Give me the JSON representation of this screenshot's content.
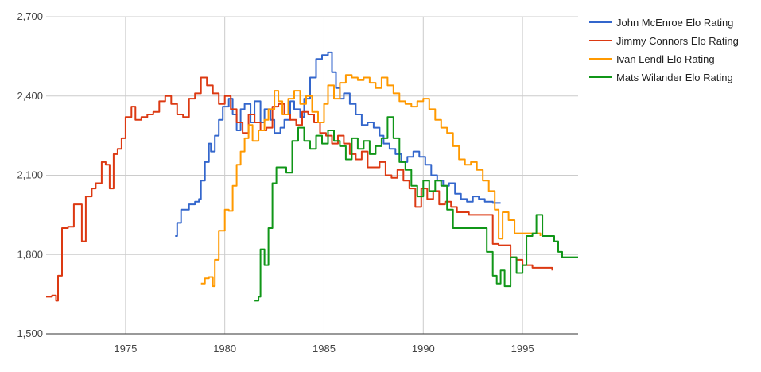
{
  "chart_data": {
    "type": "line",
    "title": "",
    "xlabel": "",
    "ylabel": "",
    "xlim": [
      1971.0,
      1997.8
    ],
    "ylim": [
      1500,
      2700
    ],
    "grid": true,
    "legend_position": "right",
    "x_ticks": [
      1975,
      1980,
      1985,
      1990,
      1995
    ],
    "x_tick_labels": [
      "1975",
      "1980",
      "1985",
      "1990",
      "1995"
    ],
    "y_ticks": [
      1500,
      1800,
      2100,
      2400,
      2700
    ],
    "y_tick_labels": [
      "1,500",
      "1,800",
      "2,100",
      "2,400",
      "2,700"
    ],
    "series": [
      {
        "name": "John McEnroe Elo Rating",
        "color": "#3366cc",
        "points": [
          [
            1977.5,
            1870
          ],
          [
            1977.6,
            1920
          ],
          [
            1977.8,
            1970
          ],
          [
            1978.2,
            1990
          ],
          [
            1978.5,
            2000
          ],
          [
            1978.7,
            2010
          ],
          [
            1978.8,
            2080
          ],
          [
            1979.0,
            2150
          ],
          [
            1979.2,
            2220
          ],
          [
            1979.3,
            2190
          ],
          [
            1979.5,
            2250
          ],
          [
            1979.7,
            2310
          ],
          [
            1979.9,
            2360
          ],
          [
            1980.2,
            2390
          ],
          [
            1980.4,
            2330
          ],
          [
            1980.6,
            2270
          ],
          [
            1980.8,
            2350
          ],
          [
            1981.0,
            2370
          ],
          [
            1981.3,
            2300
          ],
          [
            1981.5,
            2380
          ],
          [
            1981.8,
            2300
          ],
          [
            1982.0,
            2350
          ],
          [
            1982.3,
            2310
          ],
          [
            1982.5,
            2260
          ],
          [
            1982.8,
            2280
          ],
          [
            1983.0,
            2310
          ],
          [
            1983.3,
            2380
          ],
          [
            1983.5,
            2350
          ],
          [
            1983.8,
            2320
          ],
          [
            1984.0,
            2390
          ],
          [
            1984.3,
            2470
          ],
          [
            1984.6,
            2540
          ],
          [
            1984.9,
            2555
          ],
          [
            1985.2,
            2565
          ],
          [
            1985.4,
            2490
          ],
          [
            1985.6,
            2430
          ],
          [
            1985.8,
            2390
          ],
          [
            1986.0,
            2410
          ],
          [
            1986.3,
            2370
          ],
          [
            1986.6,
            2330
          ],
          [
            1986.9,
            2290
          ],
          [
            1987.2,
            2300
          ],
          [
            1987.5,
            2280
          ],
          [
            1987.8,
            2250
          ],
          [
            1988.0,
            2220
          ],
          [
            1988.3,
            2200
          ],
          [
            1988.6,
            2180
          ],
          [
            1988.9,
            2150
          ],
          [
            1989.2,
            2170
          ],
          [
            1989.5,
            2190
          ],
          [
            1989.8,
            2170
          ],
          [
            1990.1,
            2140
          ],
          [
            1990.4,
            2100
          ],
          [
            1990.7,
            2080
          ],
          [
            1991.0,
            2060
          ],
          [
            1991.3,
            2070
          ],
          [
            1991.6,
            2030
          ],
          [
            1991.9,
            2010
          ],
          [
            1992.2,
            2000
          ],
          [
            1992.5,
            2020
          ],
          [
            1992.8,
            2010
          ],
          [
            1993.1,
            2000
          ],
          [
            1993.5,
            1995
          ],
          [
            1993.9,
            1995
          ]
        ]
      },
      {
        "name": "Jimmy Connors Elo Rating",
        "color": "#dc3912",
        "points": [
          [
            1971.0,
            1640
          ],
          [
            1971.3,
            1645
          ],
          [
            1971.5,
            1625
          ],
          [
            1971.6,
            1720
          ],
          [
            1971.8,
            1900
          ],
          [
            1972.1,
            1905
          ],
          [
            1972.4,
            1990
          ],
          [
            1972.6,
            1990
          ],
          [
            1972.8,
            1850
          ],
          [
            1973.0,
            2020
          ],
          [
            1973.3,
            2050
          ],
          [
            1973.5,
            2070
          ],
          [
            1973.8,
            2150
          ],
          [
            1974.0,
            2140
          ],
          [
            1974.2,
            2050
          ],
          [
            1974.4,
            2180
          ],
          [
            1974.6,
            2200
          ],
          [
            1974.8,
            2240
          ],
          [
            1975.0,
            2320
          ],
          [
            1975.3,
            2360
          ],
          [
            1975.5,
            2310
          ],
          [
            1975.8,
            2320
          ],
          [
            1976.1,
            2330
          ],
          [
            1976.4,
            2340
          ],
          [
            1976.7,
            2380
          ],
          [
            1977.0,
            2400
          ],
          [
            1977.3,
            2370
          ],
          [
            1977.6,
            2330
          ],
          [
            1977.9,
            2320
          ],
          [
            1978.2,
            2390
          ],
          [
            1978.5,
            2410
          ],
          [
            1978.8,
            2470
          ],
          [
            1979.1,
            2440
          ],
          [
            1979.4,
            2410
          ],
          [
            1979.7,
            2370
          ],
          [
            1980.0,
            2400
          ],
          [
            1980.3,
            2350
          ],
          [
            1980.6,
            2300
          ],
          [
            1980.9,
            2260
          ],
          [
            1981.2,
            2330
          ],
          [
            1981.5,
            2300
          ],
          [
            1981.8,
            2270
          ],
          [
            1982.1,
            2280
          ],
          [
            1982.4,
            2360
          ],
          [
            1982.7,
            2370
          ],
          [
            1983.0,
            2330
          ],
          [
            1983.3,
            2310
          ],
          [
            1983.6,
            2290
          ],
          [
            1983.9,
            2340
          ],
          [
            1984.2,
            2330
          ],
          [
            1984.5,
            2300
          ],
          [
            1984.8,
            2260
          ],
          [
            1985.1,
            2250
          ],
          [
            1985.4,
            2220
          ],
          [
            1985.7,
            2250
          ],
          [
            1986.0,
            2220
          ],
          [
            1986.3,
            2180
          ],
          [
            1986.6,
            2160
          ],
          [
            1986.9,
            2190
          ],
          [
            1987.2,
            2130
          ],
          [
            1987.5,
            2130
          ],
          [
            1987.8,
            2150
          ],
          [
            1988.1,
            2100
          ],
          [
            1988.4,
            2090
          ],
          [
            1988.7,
            2120
          ],
          [
            1989.0,
            2080
          ],
          [
            1989.3,
            2050
          ],
          [
            1989.6,
            1980
          ],
          [
            1989.9,
            2050
          ],
          [
            1990.2,
            2010
          ],
          [
            1990.5,
            2040
          ],
          [
            1990.8,
            1990
          ],
          [
            1991.1,
            2000
          ],
          [
            1991.4,
            1980
          ],
          [
            1991.7,
            1960
          ],
          [
            1992.0,
            1960
          ],
          [
            1992.3,
            1950
          ],
          [
            1992.6,
            1950
          ],
          [
            1992.9,
            1950
          ],
          [
            1993.2,
            1950
          ],
          [
            1993.5,
            1840
          ],
          [
            1993.8,
            1835
          ],
          [
            1994.1,
            1835
          ],
          [
            1994.4,
            1790
          ],
          [
            1994.7,
            1780
          ],
          [
            1995.0,
            1760
          ],
          [
            1995.5,
            1750
          ],
          [
            1996.0,
            1750
          ],
          [
            1996.5,
            1740
          ]
        ]
      },
      {
        "name": "Ivan Lendl Elo Rating",
        "color": "#ff9900",
        "points": [
          [
            1978.8,
            1690
          ],
          [
            1979.0,
            1710
          ],
          [
            1979.2,
            1715
          ],
          [
            1979.4,
            1680
          ],
          [
            1979.5,
            1780
          ],
          [
            1979.7,
            1890
          ],
          [
            1980.0,
            1970
          ],
          [
            1980.2,
            1965
          ],
          [
            1980.4,
            2060
          ],
          [
            1980.6,
            2140
          ],
          [
            1980.8,
            2190
          ],
          [
            1981.0,
            2240
          ],
          [
            1981.2,
            2290
          ],
          [
            1981.4,
            2230
          ],
          [
            1981.7,
            2270
          ],
          [
            1982.0,
            2310
          ],
          [
            1982.2,
            2350
          ],
          [
            1982.5,
            2420
          ],
          [
            1982.7,
            2380
          ],
          [
            1982.9,
            2330
          ],
          [
            1983.2,
            2390
          ],
          [
            1983.5,
            2420
          ],
          [
            1983.8,
            2370
          ],
          [
            1984.1,
            2400
          ],
          [
            1984.4,
            2340
          ],
          [
            1984.7,
            2300
          ],
          [
            1985.0,
            2370
          ],
          [
            1985.2,
            2440
          ],
          [
            1985.5,
            2390
          ],
          [
            1985.8,
            2450
          ],
          [
            1986.1,
            2480
          ],
          [
            1986.4,
            2470
          ],
          [
            1986.7,
            2460
          ],
          [
            1987.0,
            2470
          ],
          [
            1987.3,
            2450
          ],
          [
            1987.6,
            2430
          ],
          [
            1987.9,
            2470
          ],
          [
            1988.2,
            2440
          ],
          [
            1988.5,
            2410
          ],
          [
            1988.8,
            2380
          ],
          [
            1989.1,
            2370
          ],
          [
            1989.4,
            2360
          ],
          [
            1989.7,
            2380
          ],
          [
            1990.0,
            2390
          ],
          [
            1990.3,
            2350
          ],
          [
            1990.6,
            2310
          ],
          [
            1990.9,
            2280
          ],
          [
            1991.2,
            2260
          ],
          [
            1991.5,
            2210
          ],
          [
            1991.8,
            2160
          ],
          [
            1992.1,
            2140
          ],
          [
            1992.4,
            2150
          ],
          [
            1992.7,
            2120
          ],
          [
            1993.0,
            2080
          ],
          [
            1993.3,
            2040
          ],
          [
            1993.6,
            1970
          ],
          [
            1993.8,
            1860
          ],
          [
            1994.0,
            1960
          ],
          [
            1994.3,
            1930
          ],
          [
            1994.6,
            1880
          ],
          [
            1995.0,
            1880
          ],
          [
            1995.5,
            1880
          ],
          [
            1995.9,
            1870
          ]
        ]
      },
      {
        "name": "Mats Wilander Elo Rating",
        "color": "#109618",
        "points": [
          [
            1981.5,
            1625
          ],
          [
            1981.7,
            1640
          ],
          [
            1981.8,
            1820
          ],
          [
            1982.0,
            1760
          ],
          [
            1982.2,
            1900
          ],
          [
            1982.4,
            2070
          ],
          [
            1982.6,
            2130
          ],
          [
            1982.9,
            2130
          ],
          [
            1983.1,
            2110
          ],
          [
            1983.4,
            2230
          ],
          [
            1983.7,
            2280
          ],
          [
            1984.0,
            2230
          ],
          [
            1984.3,
            2200
          ],
          [
            1984.6,
            2250
          ],
          [
            1984.9,
            2220
          ],
          [
            1985.2,
            2270
          ],
          [
            1985.5,
            2230
          ],
          [
            1985.8,
            2210
          ],
          [
            1986.1,
            2160
          ],
          [
            1986.4,
            2240
          ],
          [
            1986.7,
            2200
          ],
          [
            1987.0,
            2230
          ],
          [
            1987.3,
            2180
          ],
          [
            1987.6,
            2210
          ],
          [
            1987.9,
            2240
          ],
          [
            1988.2,
            2320
          ],
          [
            1988.5,
            2240
          ],
          [
            1988.8,
            2150
          ],
          [
            1989.1,
            2120
          ],
          [
            1989.4,
            2060
          ],
          [
            1989.7,
            2020
          ],
          [
            1990.0,
            2080
          ],
          [
            1990.3,
            2040
          ],
          [
            1990.6,
            2080
          ],
          [
            1990.9,
            2060
          ],
          [
            1991.2,
            1970
          ],
          [
            1991.5,
            1900
          ],
          [
            1992.0,
            1900
          ],
          [
            1992.5,
            1900
          ],
          [
            1993.0,
            1900
          ],
          [
            1993.2,
            1810
          ],
          [
            1993.5,
            1720
          ],
          [
            1993.7,
            1690
          ],
          [
            1993.9,
            1740
          ],
          [
            1994.1,
            1680
          ],
          [
            1994.4,
            1790
          ],
          [
            1994.7,
            1730
          ],
          [
            1995.0,
            1760
          ],
          [
            1995.2,
            1870
          ],
          [
            1995.5,
            1880
          ],
          [
            1995.7,
            1950
          ],
          [
            1996.0,
            1870
          ],
          [
            1996.3,
            1870
          ],
          [
            1996.6,
            1850
          ],
          [
            1996.8,
            1810
          ],
          [
            1997.0,
            1790
          ],
          [
            1997.4,
            1790
          ],
          [
            1997.8,
            1790
          ]
        ]
      }
    ]
  }
}
